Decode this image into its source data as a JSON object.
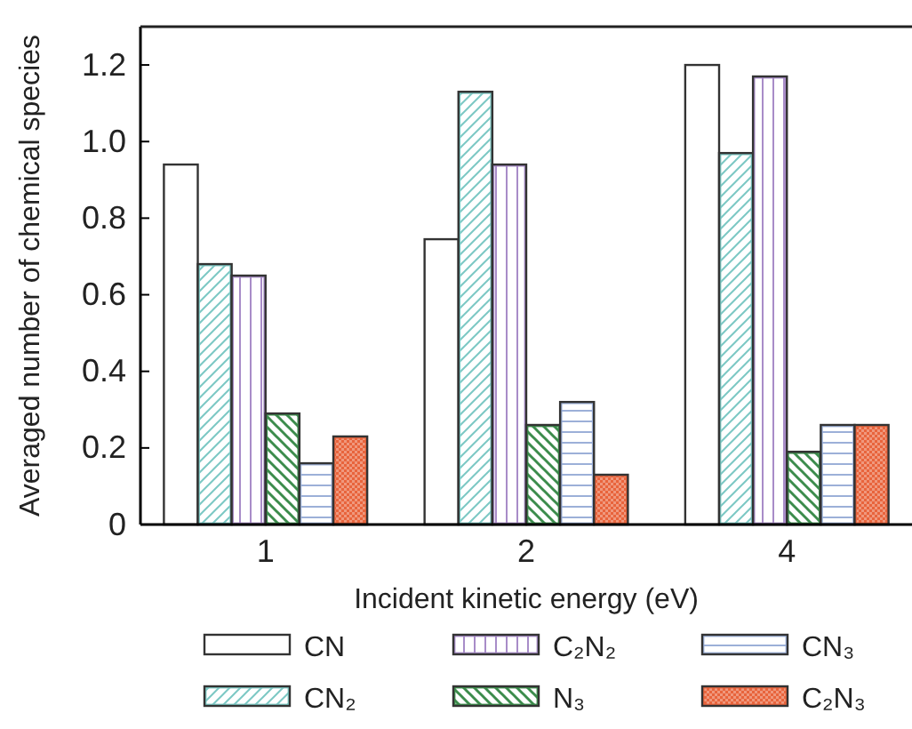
{
  "chart_data": {
    "type": "bar",
    "xlabel": "Incident kinetic energy (eV)",
    "ylabel": "Averaged number of chemical species",
    "categories": [
      "1",
      "2",
      "4"
    ],
    "series": [
      {
        "name": "CN",
        "color": "#ffffff",
        "values": [
          0.94,
          0.745,
          1.2
        ]
      },
      {
        "name": "CN₂",
        "color": "#7cc8c4",
        "values": [
          0.68,
          1.13,
          0.97
        ]
      },
      {
        "name": "C₂N₂",
        "color": "#a88cc8",
        "values": [
          0.65,
          0.94,
          1.17
        ]
      },
      {
        "name": "N₃",
        "color": "#3c8c4c",
        "values": [
          0.29,
          0.26,
          0.19
        ]
      },
      {
        "name": "CN₃",
        "color": "#9cb0d8",
        "values": [
          0.16,
          0.32,
          0.26
        ]
      },
      {
        "name": "C₂N₃",
        "color": "#e8643c",
        "values": [
          0.23,
          0.13,
          0.26
        ]
      }
    ],
    "ylim": [
      0,
      1.3
    ],
    "yticks": [
      {
        "value": 0,
        "label": "0"
      },
      0.2,
      0.4,
      0.6,
      0.8,
      {
        "value": 1,
        "label": "1.0"
      },
      1.2
    ],
    "grid": false,
    "legend": "bottom"
  }
}
